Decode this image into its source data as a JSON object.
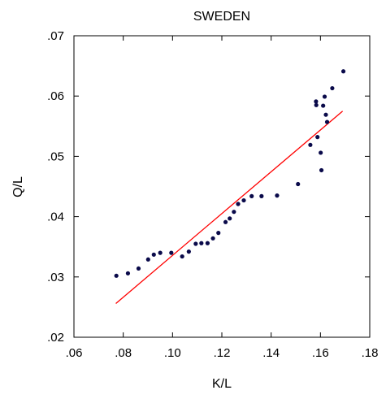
{
  "chart_data": {
    "type": "scatter",
    "title": "SWEDEN",
    "xlabel": "K/L",
    "ylabel": "Q/L",
    "xlim": [
      0.06,
      0.18
    ],
    "ylim": [
      0.02,
      0.07
    ],
    "x_ticks": [
      ".06",
      ".08",
      ".10",
      ".12",
      ".14",
      ".16",
      ".18"
    ],
    "y_ticks": [
      ".02",
      ".03",
      ".04",
      ".05",
      ".06",
      ".07"
    ],
    "grid": false,
    "colors": {
      "points": "#0a0a4a",
      "fit_line": "#ff0000",
      "frame": "#000000"
    },
    "series": [
      {
        "type": "scatter",
        "points": [
          [
            0.0772,
            0.0302
          ],
          [
            0.0819,
            0.0306
          ],
          [
            0.0862,
            0.0314
          ],
          [
            0.0901,
            0.0329
          ],
          [
            0.0924,
            0.0337
          ],
          [
            0.095,
            0.034
          ],
          [
            0.0995,
            0.034
          ],
          [
            0.1039,
            0.0334
          ],
          [
            0.1066,
            0.0342
          ],
          [
            0.1094,
            0.0355
          ],
          [
            0.1117,
            0.0356
          ],
          [
            0.1142,
            0.0356
          ],
          [
            0.1164,
            0.0364
          ],
          [
            0.1186,
            0.0373
          ],
          [
            0.1215,
            0.0391
          ],
          [
            0.1232,
            0.0397
          ],
          [
            0.1249,
            0.0408
          ],
          [
            0.1266,
            0.0421
          ],
          [
            0.1289,
            0.0427
          ],
          [
            0.1321,
            0.0434
          ],
          [
            0.1361,
            0.0434
          ],
          [
            0.1424,
            0.0435
          ],
          [
            0.1509,
            0.0454
          ],
          [
            0.1559,
            0.0519
          ],
          [
            0.1588,
            0.0532
          ],
          [
            0.1601,
            0.0506
          ],
          [
            0.1604,
            0.0477
          ],
          [
            0.1583,
            0.0585
          ],
          [
            0.1582,
            0.0591
          ],
          [
            0.1611,
            0.0584
          ],
          [
            0.1617,
            0.0599
          ],
          [
            0.1622,
            0.0569
          ],
          [
            0.1627,
            0.0557
          ],
          [
            0.1648,
            0.0613
          ],
          [
            0.1693,
            0.0641
          ]
        ]
      },
      {
        "type": "line",
        "points": [
          [
            0.077,
            0.0256
          ],
          [
            0.169,
            0.0575
          ]
        ]
      }
    ]
  }
}
